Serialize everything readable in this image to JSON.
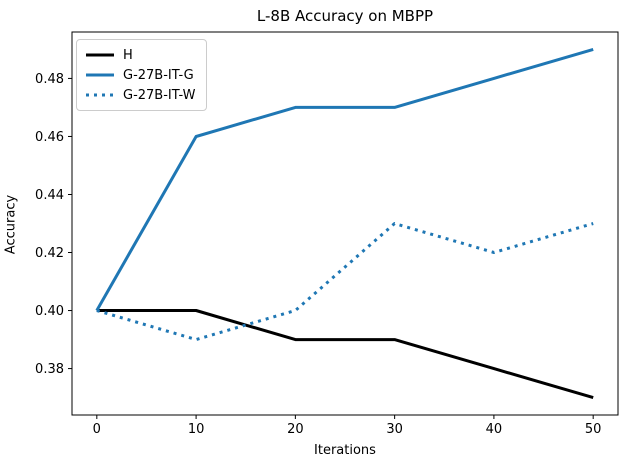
{
  "figure": {
    "kind": "matplotlib-line-chart"
  },
  "chart_data": {
    "type": "line",
    "title": "L-8B Accuracy on MBPP",
    "xlabel": "Iterations",
    "ylabel": "Accuracy",
    "x": [
      0,
      10,
      20,
      30,
      40,
      50
    ],
    "series": [
      {
        "name": "H",
        "color": "#000000",
        "style": "solid",
        "linewidth": 3,
        "values": [
          0.4,
          0.4,
          0.39,
          0.39,
          0.38,
          0.37
        ]
      },
      {
        "name": "G-27B-IT-G",
        "color": "#1f77b4",
        "style": "solid",
        "linewidth": 3,
        "values": [
          0.4,
          0.46,
          0.47,
          0.47,
          0.48,
          0.49
        ]
      },
      {
        "name": "G-27B-IT-W",
        "color": "#1f77b4",
        "style": "dotted",
        "linewidth": 3,
        "values": [
          0.4,
          0.39,
          0.4,
          0.43,
          0.42,
          0.43
        ]
      }
    ],
    "xticks": [
      0,
      10,
      20,
      30,
      40,
      50
    ],
    "yticks": [
      0.38,
      0.4,
      0.42,
      0.44,
      0.46,
      0.48
    ],
    "xlim": [
      -2.5,
      52.5
    ],
    "ylim": [
      0.364,
      0.496
    ],
    "legend_position": "upper left",
    "grid": false,
    "axis_color": "#000000",
    "background_color": "#ffffff"
  }
}
